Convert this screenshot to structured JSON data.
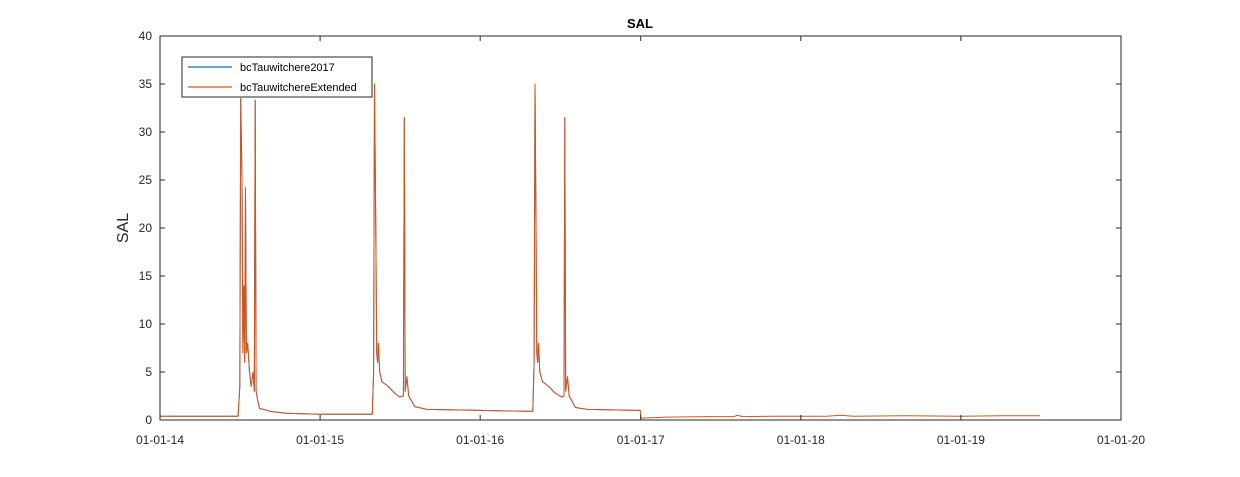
{
  "chart_data": {
    "type": "line",
    "title": "SAL",
    "xlabel": "",
    "ylabel": "SAL",
    "xlim": [
      "2014-01-01",
      "2020-01-01"
    ],
    "ylim": [
      0,
      40
    ],
    "xticks": [
      "2014-01-01",
      "2015-01-01",
      "2016-01-01",
      "2017-01-01",
      "2018-01-01",
      "2019-01-01",
      "2020-01-01"
    ],
    "xtick_labels": [
      "01-01-14",
      "01-01-15",
      "01-01-16",
      "01-01-17",
      "01-01-18",
      "01-01-19",
      "01-01-20"
    ],
    "yticks": [
      0,
      5,
      10,
      15,
      20,
      25,
      30,
      35,
      40
    ],
    "grid": false,
    "legend_position": "top-left",
    "series": [
      {
        "name": "bcTauwitchere2017",
        "color": "#0072BD",
        "points": [
          [
            "2014-01-01",
            0.4
          ],
          [
            "2014-06-28",
            0.4
          ],
          [
            "2014-07-02",
            3.5
          ],
          [
            "2014-07-04",
            33.5
          ],
          [
            "2014-07-07",
            25
          ],
          [
            "2014-07-09",
            7
          ],
          [
            "2014-07-11",
            14
          ],
          [
            "2014-07-13",
            6
          ],
          [
            "2014-07-15",
            24.2
          ],
          [
            "2014-07-17",
            7
          ],
          [
            "2014-07-20",
            8
          ],
          [
            "2014-07-24",
            5
          ],
          [
            "2014-07-28",
            3.5
          ],
          [
            "2014-08-01",
            5
          ],
          [
            "2014-08-04",
            3
          ],
          [
            "2014-08-06",
            33.3
          ],
          [
            "2014-08-08",
            3
          ],
          [
            "2014-08-12",
            2
          ],
          [
            "2014-08-16",
            1.2
          ],
          [
            "2014-08-25",
            1.1
          ],
          [
            "2014-09-10",
            0.9
          ],
          [
            "2014-10-15",
            0.7
          ],
          [
            "2015-01-01",
            0.6
          ],
          [
            "2015-04-30",
            0.6
          ],
          [
            "2015-05-03",
            5
          ],
          [
            "2015-05-05",
            35
          ],
          [
            "2015-05-08",
            20
          ],
          [
            "2015-05-10",
            7
          ],
          [
            "2015-05-12",
            6
          ],
          [
            "2015-05-14",
            8
          ],
          [
            "2015-05-17",
            5
          ],
          [
            "2015-05-22",
            4
          ],
          [
            "2015-06-05",
            3.5
          ],
          [
            "2015-06-20",
            2.8
          ],
          [
            "2015-07-01",
            2.4
          ],
          [
            "2015-07-10",
            2.5
          ],
          [
            "2015-07-12",
            31.5
          ],
          [
            "2015-07-14",
            3
          ],
          [
            "2015-07-18",
            4.5
          ],
          [
            "2015-07-22",
            2.5
          ],
          [
            "2015-08-05",
            1.4
          ],
          [
            "2015-09-01",
            1.1
          ],
          [
            "2016-01-01",
            1.0
          ],
          [
            "2016-04-30",
            0.9
          ],
          [
            "2016-05-03",
            6
          ],
          [
            "2016-05-05",
            35
          ],
          [
            "2016-05-07",
            22
          ],
          [
            "2016-05-09",
            7
          ],
          [
            "2016-05-11",
            6
          ],
          [
            "2016-05-13",
            8
          ],
          [
            "2016-05-16",
            5
          ],
          [
            "2016-05-22",
            4
          ],
          [
            "2016-06-05",
            3.5
          ],
          [
            "2016-06-20",
            2.8
          ],
          [
            "2016-07-05",
            2.4
          ],
          [
            "2016-07-10",
            2.5
          ],
          [
            "2016-07-12",
            31.5
          ],
          [
            "2016-07-14",
            3
          ],
          [
            "2016-07-18",
            4.5
          ],
          [
            "2016-07-22",
            2.5
          ],
          [
            "2016-08-05",
            1.3
          ],
          [
            "2016-09-01",
            1.1
          ],
          [
            "2016-12-31",
            1.0
          ]
        ]
      },
      {
        "name": "bcTauwitchereExtended",
        "color": "#D95319",
        "points": [
          [
            "2014-01-01",
            0.4
          ],
          [
            "2014-06-28",
            0.4
          ],
          [
            "2014-07-02",
            3.5
          ],
          [
            "2014-07-04",
            33.5
          ],
          [
            "2014-07-07",
            25
          ],
          [
            "2014-07-09",
            7
          ],
          [
            "2014-07-11",
            14
          ],
          [
            "2014-07-13",
            6
          ],
          [
            "2014-07-15",
            24.2
          ],
          [
            "2014-07-17",
            7
          ],
          [
            "2014-07-20",
            8
          ],
          [
            "2014-07-24",
            5
          ],
          [
            "2014-07-28",
            3.5
          ],
          [
            "2014-08-01",
            5
          ],
          [
            "2014-08-04",
            3
          ],
          [
            "2014-08-06",
            33.3
          ],
          [
            "2014-08-08",
            3
          ],
          [
            "2014-08-12",
            2
          ],
          [
            "2014-08-16",
            1.2
          ],
          [
            "2014-08-25",
            1.1
          ],
          [
            "2014-09-10",
            0.9
          ],
          [
            "2014-10-15",
            0.7
          ],
          [
            "2015-01-01",
            0.6
          ],
          [
            "2015-04-30",
            0.6
          ],
          [
            "2015-05-03",
            5
          ],
          [
            "2015-05-05",
            35
          ],
          [
            "2015-05-08",
            20
          ],
          [
            "2015-05-10",
            7
          ],
          [
            "2015-05-12",
            6
          ],
          [
            "2015-05-14",
            8
          ],
          [
            "2015-05-17",
            5
          ],
          [
            "2015-05-22",
            4
          ],
          [
            "2015-06-05",
            3.5
          ],
          [
            "2015-06-20",
            2.8
          ],
          [
            "2015-07-01",
            2.4
          ],
          [
            "2015-07-10",
            2.5
          ],
          [
            "2015-07-12",
            31.5
          ],
          [
            "2015-07-14",
            3
          ],
          [
            "2015-07-18",
            4.5
          ],
          [
            "2015-07-22",
            2.5
          ],
          [
            "2015-08-05",
            1.4
          ],
          [
            "2015-09-01",
            1.1
          ],
          [
            "2016-01-01",
            1.0
          ],
          [
            "2016-04-30",
            0.9
          ],
          [
            "2016-05-03",
            6
          ],
          [
            "2016-05-05",
            35
          ],
          [
            "2016-05-07",
            22
          ],
          [
            "2016-05-09",
            7
          ],
          [
            "2016-05-11",
            6
          ],
          [
            "2016-05-13",
            8
          ],
          [
            "2016-05-16",
            5
          ],
          [
            "2016-05-22",
            4
          ],
          [
            "2016-06-05",
            3.5
          ],
          [
            "2016-06-20",
            2.8
          ],
          [
            "2016-07-05",
            2.4
          ],
          [
            "2016-07-10",
            2.5
          ],
          [
            "2016-07-12",
            31.5
          ],
          [
            "2016-07-14",
            3
          ],
          [
            "2016-07-18",
            4.5
          ],
          [
            "2016-07-22",
            2.5
          ],
          [
            "2016-08-05",
            1.3
          ],
          [
            "2016-09-01",
            1.1
          ],
          [
            "2016-12-31",
            1.0
          ],
          [
            "2017-01-01",
            0.2
          ],
          [
            "2017-03-01",
            0.3
          ],
          [
            "2017-06-01",
            0.35
          ],
          [
            "2017-08-01",
            0.35
          ],
          [
            "2017-08-10",
            0.5
          ],
          [
            "2017-08-20",
            0.35
          ],
          [
            "2017-11-01",
            0.4
          ],
          [
            "2018-03-01",
            0.4
          ],
          [
            "2018-04-01",
            0.5
          ],
          [
            "2018-05-01",
            0.4
          ],
          [
            "2018-09-01",
            0.45
          ],
          [
            "2019-01-01",
            0.4
          ],
          [
            "2019-04-01",
            0.45
          ],
          [
            "2019-06-30",
            0.45
          ]
        ]
      }
    ]
  }
}
